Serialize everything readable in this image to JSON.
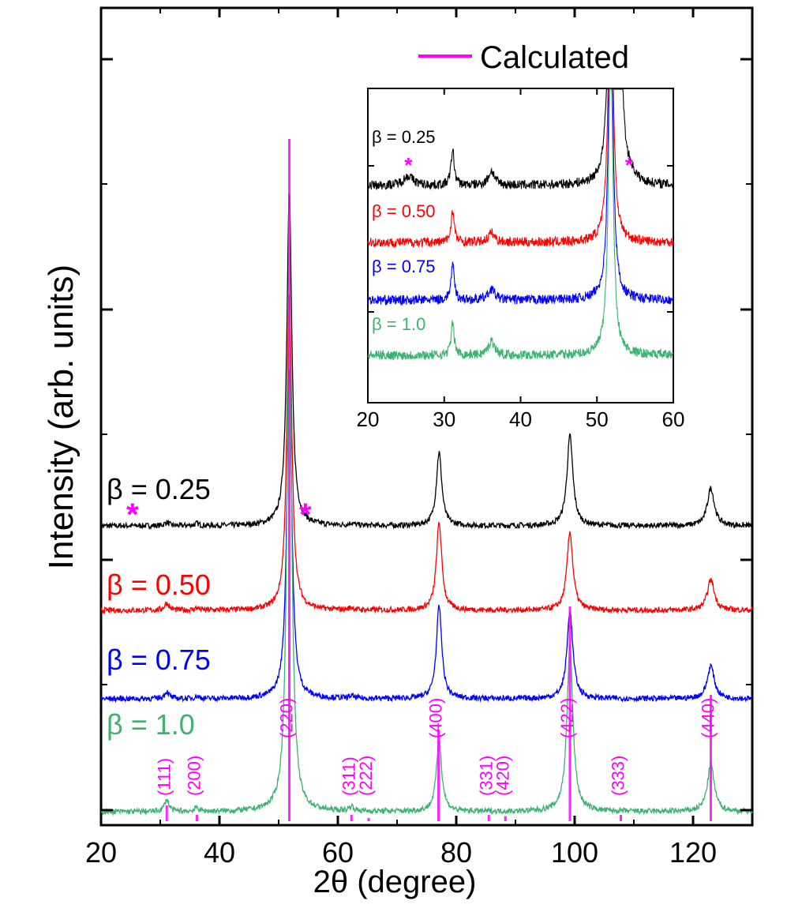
{
  "chart_data": {
    "type": "line",
    "xlabel": "2θ (degree)",
    "ylabel": "Intensity (arb. units)",
    "xlim": [
      20,
      130
    ],
    "x_ticks": [
      "20",
      "40",
      "60",
      "80",
      "100",
      "120"
    ],
    "legend": {
      "position": "top-right",
      "entries": [
        {
          "label": "Calculated",
          "color": "#ff00ff"
        }
      ]
    },
    "peak_positions": [
      31.1,
      36.2,
      51.8,
      62.3,
      77.1,
      99.2,
      123.0
    ],
    "series": [
      {
        "name": "β = 0.25",
        "color": "#000000",
        "peak_heights": [
          0.07,
          0.05,
          7.0,
          0.05,
          1.55,
          1.9,
          0.8
        ],
        "impurity_markers": [
          {
            "x": 25.3,
            "label": "*"
          },
          {
            "x": 54.5,
            "label": "*"
          }
        ]
      },
      {
        "name": "β = 0.50",
        "color": "#ff0000",
        "peak_heights": [
          0.15,
          0.05,
          6.7,
          0.05,
          1.85,
          1.65,
          0.65
        ]
      },
      {
        "name": "β = 0.75",
        "color": "#0000ff",
        "peak_heights": [
          0.15,
          0.05,
          7.0,
          0.05,
          1.95,
          1.85,
          0.7
        ]
      },
      {
        "name": "β = 1.0",
        "color": "#3cb371",
        "peak_heights": [
          0.25,
          0.08,
          10.5,
          0.1,
          1.5,
          3.5,
          1.0
        ]
      }
    ],
    "calculated": {
      "name": "Calculated",
      "color": "#ff00ff",
      "reflections": [
        {
          "hkl": "(111)",
          "x": 31.1,
          "h": 0.25
        },
        {
          "hkl": "(200)",
          "x": 36.2,
          "h": 0.1
        },
        {
          "hkl": "(220)",
          "x": 51.8,
          "h": 10.8
        },
        {
          "hkl": "(311)",
          "x": 62.3,
          "h": 0.1
        },
        {
          "hkl": "(222)",
          "x": 65.2,
          "h": 0.05
        },
        {
          "hkl": "(400)",
          "x": 77.0,
          "h": 1.45
        },
        {
          "hkl": "(331)",
          "x": 85.5,
          "h": 0.1
        },
        {
          "hkl": "(420)",
          "x": 88.3,
          "h": 0.08
        },
        {
          "hkl": "(422)",
          "x": 99.2,
          "h": 3.4
        },
        {
          "hkl": "(333)",
          "x": 107.8,
          "h": 0.1
        },
        {
          "hkl": "(440)",
          "x": 123.0,
          "h": 2.0
        }
      ]
    },
    "inset": {
      "xlim": [
        20,
        60
      ],
      "x_ticks": [
        "20",
        "30",
        "40",
        "50",
        "60"
      ],
      "series_labels": [
        "β = 0.25",
        "β = 0.50",
        "β = 0.75",
        "β = 1.0"
      ],
      "impurity_markers": [
        {
          "x": 25.3,
          "label": "*"
        },
        {
          "x": 54.2,
          "label": "*"
        }
      ]
    }
  }
}
